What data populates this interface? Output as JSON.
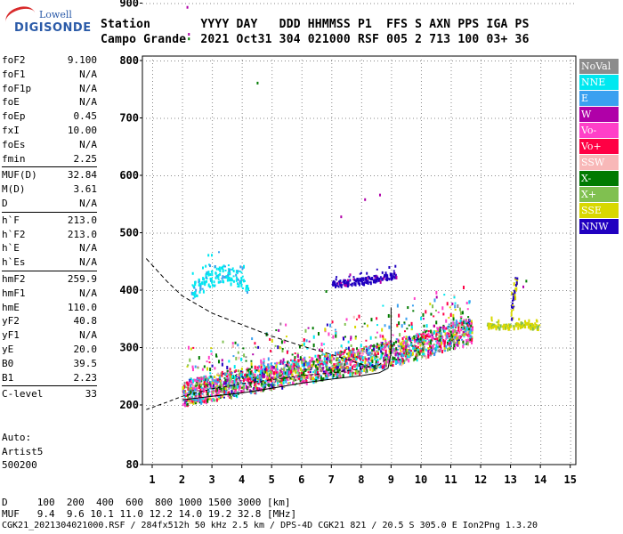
{
  "logo": {
    "line1": "Lowell",
    "line2": "DIGISONDE"
  },
  "header": {
    "row1": "Station       YYYY DAY   DDD HHMMSS P1  FFS S AXN PPS IGA PS",
    "row2": "Campo Grande  2021 Oct31 304 021000 RSF 005 2 713 100 03+ 36"
  },
  "params": [
    {
      "group": [
        {
          "k": "foF2",
          "v": "9.100"
        },
        {
          "k": "foF1",
          "v": "N/A"
        },
        {
          "k": "foF1p",
          "v": "N/A"
        },
        {
          "k": "foE",
          "v": "N/A"
        },
        {
          "k": "foEp",
          "v": "0.45"
        },
        {
          "k": "fxI",
          "v": "10.00"
        },
        {
          "k": "foEs",
          "v": "N/A"
        },
        {
          "k": "fmin",
          "v": "2.25"
        }
      ]
    },
    {
      "group": [
        {
          "k": "MUF(D)",
          "v": "32.84"
        },
        {
          "k": "M(D)",
          "v": "3.61"
        },
        {
          "k": "D",
          "v": "N/A"
        }
      ]
    },
    {
      "group": [
        {
          "k": "h`F",
          "v": "213.0"
        },
        {
          "k": "h`F2",
          "v": "213.0"
        },
        {
          "k": "h`E",
          "v": "N/A"
        },
        {
          "k": "h`Es",
          "v": "N/A"
        }
      ]
    },
    {
      "group": [
        {
          "k": "hmF2",
          "v": "259.9"
        },
        {
          "k": "hmF1",
          "v": "N/A"
        },
        {
          "k": "hmE",
          "v": "110.0"
        },
        {
          "k": "yF2",
          "v": "40.8"
        },
        {
          "k": "yF1",
          "v": "N/A"
        },
        {
          "k": "yE",
          "v": "20.0"
        },
        {
          "k": "B0",
          "v": "39.5"
        },
        {
          "k": "B1",
          "v": "2.23"
        }
      ]
    },
    {
      "group": [
        {
          "k": "C-level",
          "v": "33"
        }
      ]
    }
  ],
  "auto": {
    "line1": "Auto:",
    "line2": "Artist5",
    "line3": "500200"
  },
  "legend": [
    {
      "label": "NoVal",
      "color": "#8c8c8c"
    },
    {
      "label": "NNE",
      "color": "#00e8f0"
    },
    {
      "label": "E",
      "color": "#3aa0f0"
    },
    {
      "label": "W",
      "color": "#b000a8"
    },
    {
      "label": "Vo-",
      "color": "#ff40c8"
    },
    {
      "label": "Vo+",
      "color": "#ff0044"
    },
    {
      "label": "SSW",
      "color": "#f8b8b8"
    },
    {
      "label": "X-",
      "color": "#007a00"
    },
    {
      "label": "X+",
      "color": "#80c050"
    },
    {
      "label": "SSE",
      "color": "#d8d800"
    },
    {
      "label": "NNW",
      "color": "#2000c0"
    }
  ],
  "footer": {
    "row1": "D     100  200  400  600  800 1000 1500 3000 [km]",
    "row2": "MUF   9.4  9.6 10.1 11.0 12.2 14.0 19.2 32.8 [MHz]",
    "row3": "CGK21_2021304021000.RSF / 284fx512h 50 kHz 2.5 km / DPS-4D CGK21 821 / 20.5 S 305.0 E Ion2Png 1.3.20"
  },
  "chart_data": {
    "type": "scatter",
    "xlim": [
      0.8,
      15.2
    ],
    "ylim": [
      80,
      905
    ],
    "x_ticks": [
      "1",
      "2",
      "3",
      "4",
      "5",
      "6",
      "7",
      "8",
      "9",
      "10",
      "11",
      "12",
      "13",
      "14",
      "15"
    ],
    "y_ticks": [
      "80",
      "200",
      "300",
      "400",
      "500",
      "600",
      "700",
      "800",
      "900"
    ],
    "trace_main": [
      [
        2.0,
        222
      ],
      [
        3.0,
        232
      ],
      [
        4.0,
        242
      ],
      [
        5.0,
        252
      ],
      [
        6.0,
        261
      ],
      [
        7.0,
        270
      ],
      [
        8.0,
        280
      ],
      [
        9.0,
        292
      ],
      [
        10.0,
        305
      ],
      [
        11.0,
        322
      ],
      [
        11.7,
        332
      ]
    ],
    "trace_upper": [
      [
        2.3,
        400
      ],
      [
        2.8,
        418
      ],
      [
        3.3,
        430
      ],
      [
        3.8,
        424
      ],
      [
        4.2,
        408
      ]
    ],
    "trace_mid": [
      [
        7.0,
        412
      ],
      [
        7.7,
        416
      ],
      [
        8.4,
        420
      ],
      [
        9.2,
        428
      ]
    ],
    "trace_right": [
      [
        12.2,
        340
      ],
      [
        12.8,
        338
      ],
      [
        13.4,
        342
      ],
      [
        14.0,
        337
      ]
    ],
    "trace_right_tall": [
      [
        13.0,
        360
      ],
      [
        13.1,
        390
      ],
      [
        13.2,
        410
      ]
    ],
    "profile_solid": [
      [
        2.0,
        209
      ],
      [
        3.0,
        215
      ],
      [
        4.0,
        221
      ],
      [
        5.0,
        229
      ],
      [
        6.0,
        238
      ],
      [
        7.0,
        245
      ],
      [
        8.0,
        251
      ],
      [
        8.6,
        256
      ],
      [
        8.9,
        264
      ],
      [
        9.0,
        290
      ],
      [
        9.0,
        330
      ],
      [
        9.0,
        370
      ]
    ],
    "profile_dashed": [
      [
        0.8,
        455
      ],
      [
        1.5,
        415
      ],
      [
        2.0,
        390
      ],
      [
        3.0,
        360
      ],
      [
        4.0,
        340
      ],
      [
        5.0,
        320
      ],
      [
        6.0,
        303
      ],
      [
        7.0,
        288
      ],
      [
        8.0,
        271
      ],
      [
        8.6,
        262
      ]
    ],
    "profile_low": [
      [
        0.8,
        192
      ],
      [
        1.5,
        205
      ],
      [
        2.0,
        215
      ],
      [
        3.0,
        228
      ],
      [
        4.0,
        237
      ],
      [
        5.0,
        244
      ],
      [
        6.0,
        251
      ],
      [
        7.0,
        256
      ],
      [
        8.0,
        263
      ],
      [
        8.6,
        270
      ],
      [
        8.9,
        283
      ]
    ],
    "sparse_points": [
      [
        2.15,
        895
      ],
      [
        2.2,
        848
      ],
      [
        2.2,
        840
      ],
      [
        4.5,
        763
      ],
      [
        7.3,
        530
      ],
      [
        8.1,
        560
      ],
      [
        8.6,
        568
      ],
      [
        6.8,
        400
      ],
      [
        10.5,
        390
      ],
      [
        13.4,
        408
      ],
      [
        13.5,
        418
      ]
    ]
  }
}
